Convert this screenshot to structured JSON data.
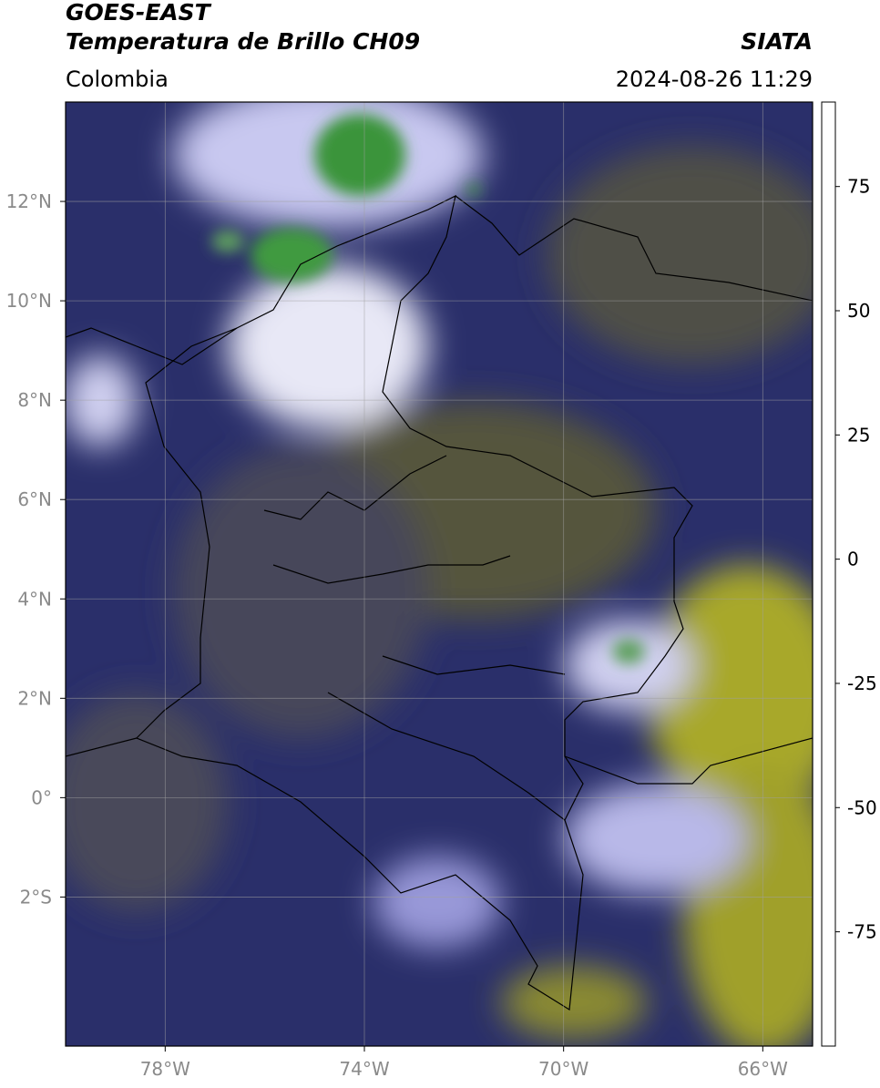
{
  "header": {
    "title": "GOES-EAST",
    "subtitle": "Temperatura de Brillo CH09",
    "source": "SIATA",
    "region": "Colombia",
    "datetime": "2024-08-26 11:29"
  },
  "map": {
    "lonlim": [
      -80,
      -65
    ],
    "latlim": [
      -5,
      14
    ],
    "lonticks": [
      {
        "value": -78,
        "label": "78°W"
      },
      {
        "value": -74,
        "label": "74°W"
      },
      {
        "value": -70,
        "label": "70°W"
      },
      {
        "value": -66,
        "label": "66°W"
      }
    ],
    "latticks": [
      {
        "value": 12,
        "label": "12°N"
      },
      {
        "value": 10,
        "label": "10°N"
      },
      {
        "value": 8,
        "label": "8°N"
      },
      {
        "value": 6,
        "label": "6°N"
      },
      {
        "value": 4,
        "label": "4°N"
      },
      {
        "value": 2,
        "label": "2°N"
      },
      {
        "value": 0,
        "label": "0°"
      },
      {
        "value": -2,
        "label": "2°S"
      }
    ],
    "grid": true
  },
  "colorbar": {
    "lim": [
      -98,
      92
    ],
    "ticks": [
      75,
      50,
      25,
      0,
      -25,
      -50,
      -75
    ],
    "stops": [
      {
        "value": -98,
        "color": "#ffffff"
      },
      {
        "value": -94,
        "color": "#ffffff"
      },
      {
        "value": -94,
        "color": "#00e5e5"
      },
      {
        "value": -85,
        "color": "#1ab5a0"
      },
      {
        "value": -75,
        "color": "#1a9a7a"
      },
      {
        "value": -68,
        "color": "#2e8b2e"
      },
      {
        "value": -60,
        "color": "#5ea05e"
      },
      {
        "value": -55,
        "color": "#d0e8d0"
      },
      {
        "value": -50,
        "color": "#ffffff"
      },
      {
        "value": -45,
        "color": "#b0b0e0"
      },
      {
        "value": -35,
        "color": "#3030a0"
      },
      {
        "value": -28,
        "color": "#101088"
      },
      {
        "value": -25,
        "color": "#404060"
      },
      {
        "value": -20,
        "color": "#707040"
      },
      {
        "value": -15,
        "color": "#d0d020"
      },
      {
        "value": -10,
        "color": "#ffe000"
      },
      {
        "value": -2,
        "color": "#ff8000"
      },
      {
        "value": 8,
        "color": "#ff0000"
      },
      {
        "value": 8,
        "color": "#000000"
      },
      {
        "value": 92,
        "color": "#000000"
      }
    ]
  }
}
